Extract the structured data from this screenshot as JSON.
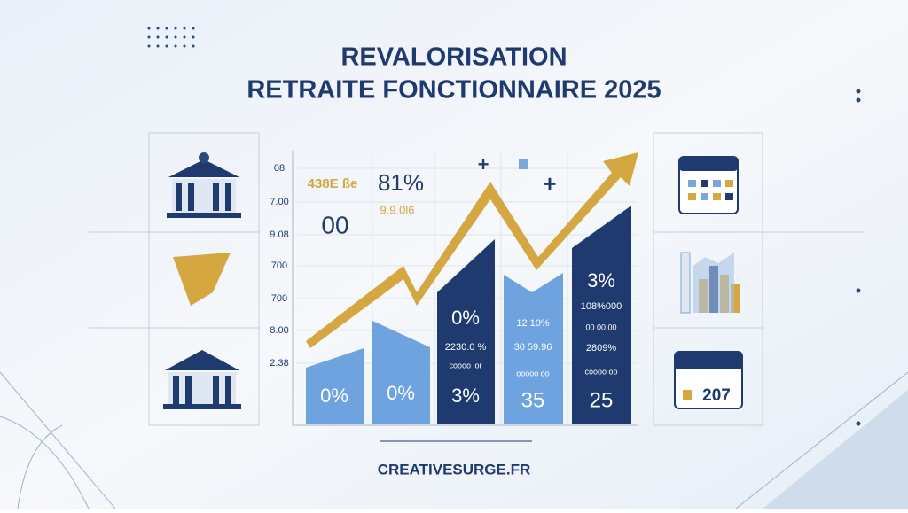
{
  "header": {
    "title_line1": "REVALORISATION",
    "title_line2": "RETRAITE FONCTIONNAIRE 2025"
  },
  "axis_labels": [
    "08",
    "7.00",
    "9.08",
    "700",
    "700",
    "8.00",
    "2.38"
  ],
  "chart_texts": {
    "top_left": "438E ße",
    "big_percent": "81%",
    "small_figure": "9.9.0l6",
    "big_zero": "00"
  },
  "bars": [
    {
      "labels": [
        "0%"
      ]
    },
    {
      "labels": [
        "0%"
      ]
    },
    {
      "labels": [
        "0%",
        "2230.0 %",
        "coooo ior",
        "3%"
      ]
    },
    {
      "labels": [
        "12 10%",
        "30 59.96",
        "ooooo oo",
        "35"
      ]
    },
    {
      "labels": [
        "3%",
        "108%000",
        "00 00.00",
        "2809%",
        "coooo oo",
        "25"
      ]
    }
  ],
  "calendar_label": "207",
  "footer": {
    "site": "CREATIVESURGE.FR"
  }
}
